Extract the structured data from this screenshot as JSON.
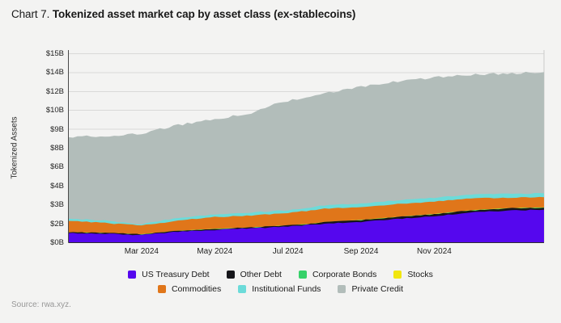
{
  "page": {
    "background": "#f3f3f2"
  },
  "header": {
    "prefix": "Chart 7.",
    "title": "Tokenized asset market cap by asset class (ex-stablecoins)"
  },
  "source": "Source: rwa.xyz.",
  "chart_data": {
    "type": "area",
    "stacked": true,
    "title": "Tokenized asset market cap by asset class (ex-stablecoins)",
    "ylabel": "Tokenized Assets",
    "xlabel": "",
    "unit": "USD billions",
    "grid": true,
    "legend_position": "bottom",
    "x": [
      "Jan 2024",
      "Feb 2024",
      "Mar 2024",
      "Apr 2024",
      "May 2024",
      "Jun 2024",
      "Jul 2024",
      "Aug 2024",
      "Sep 2024",
      "Oct 2024",
      "Nov 2024",
      "Dec 2024",
      "Jan 2025",
      "Feb 2025"
    ],
    "x_tick_labels": [
      {
        "label": "Mar 2024",
        "month_index": 2
      },
      {
        "label": "May 2024",
        "month_index": 4
      },
      {
        "label": "Jul 2024",
        "month_index": 6
      },
      {
        "label": "Sep 2024",
        "month_index": 8
      },
      {
        "label": "Nov 2024",
        "month_index": 10
      }
    ],
    "y_axis": {
      "note": "non-linear printed tick sequence, evenly spaced",
      "ticks": [
        {
          "value": 0,
          "label": "$0B"
        },
        {
          "value": 2,
          "label": "$2B"
        },
        {
          "value": 3,
          "label": "$3B"
        },
        {
          "value": 4,
          "label": "$4B"
        },
        {
          "value": 6,
          "label": "$6B"
        },
        {
          "value": 8,
          "label": "$8B"
        },
        {
          "value": 9,
          "label": "$9B"
        },
        {
          "value": 10,
          "label": "$10B"
        },
        {
          "value": 12,
          "label": "$12B"
        },
        {
          "value": 14,
          "label": "$14B"
        },
        {
          "value": 15,
          "label": "$15B"
        }
      ]
    },
    "series": [
      {
        "name": "US Treasury Debt",
        "color": "#5507ee",
        "values": [
          1.0,
          0.95,
          0.8,
          1.15,
          1.35,
          1.5,
          1.72,
          2.0,
          2.1,
          2.25,
          2.4,
          2.6,
          2.7,
          2.74
        ]
      },
      {
        "name": "Other Debt",
        "color": "#16161a",
        "values": [
          0.08,
          0.08,
          0.08,
          0.1,
          0.1,
          0.1,
          0.1,
          0.08,
          0.09,
          0.1,
          0.1,
          0.1,
          0.11,
          0.11
        ]
      },
      {
        "name": "Corporate Bonds",
        "color": "#36d169",
        "values": [
          0.01,
          0.01,
          0.01,
          0.01,
          0.01,
          0.01,
          0.01,
          0.01,
          0.01,
          0.01,
          0.01,
          0.01,
          0.01,
          0.01
        ]
      },
      {
        "name": "Stocks",
        "color": "#f1e60f",
        "values": [
          0.01,
          0.01,
          0.01,
          0.01,
          0.01,
          0.01,
          0.01,
          0.01,
          0.01,
          0.01,
          0.01,
          0.01,
          0.01,
          0.01
        ]
      },
      {
        "name": "Commodities",
        "color": "#e0761a",
        "values": [
          1.05,
          1.0,
          0.95,
          0.92,
          0.88,
          0.82,
          0.72,
          0.7,
          0.68,
          0.68,
          0.66,
          0.62,
          0.55,
          0.53
        ]
      },
      {
        "name": "Institutional Funds",
        "color": "#6cdbd9",
        "values": [
          0.12,
          0.12,
          0.12,
          0.13,
          0.14,
          0.15,
          0.16,
          0.17,
          0.18,
          0.19,
          0.2,
          0.21,
          0.21,
          0.21
        ]
      },
      {
        "name": "Private Credit",
        "color": "#b2bdba",
        "values": [
          6.31,
          6.49,
          6.8,
          6.91,
          7.05,
          7.28,
          8.31,
          8.89,
          9.41,
          9.81,
          10.1,
          10.23,
          10.32,
          10.42
        ]
      }
    ],
    "legend_rows": [
      [
        "US Treasury Debt",
        "Other Debt",
        "Corporate Bonds",
        "Stocks"
      ],
      [
        "Commodities",
        "Institutional Funds",
        "Private Credit"
      ]
    ]
  }
}
